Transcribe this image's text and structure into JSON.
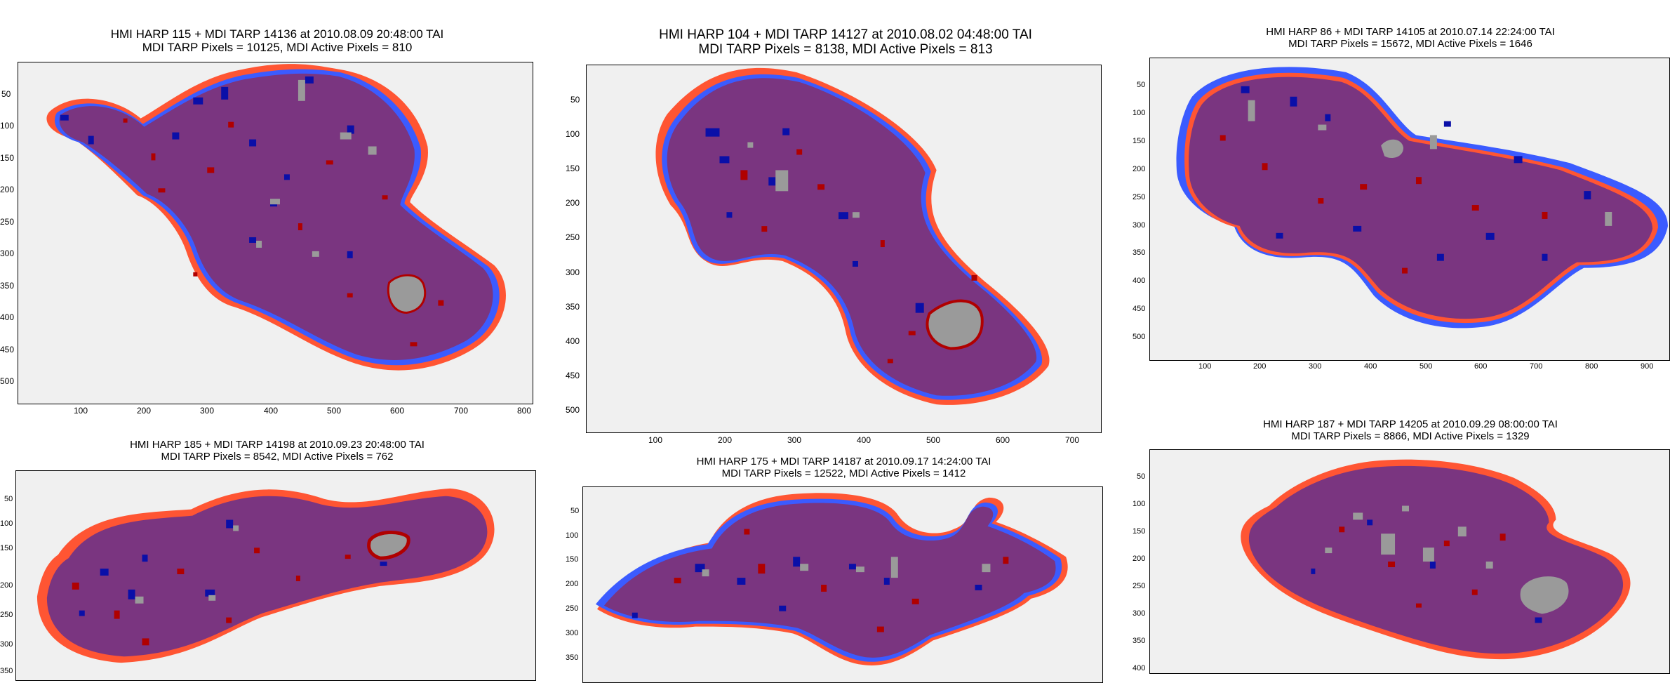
{
  "colors": {
    "background": "#f0f0f0",
    "region": "#7a3580",
    "mdi_only": "#ff5533",
    "hmi_only": "#3b5bff",
    "active_hmi": "#0a0fa8",
    "active_mdi": "#b00000",
    "active_both": "#9a9a9a"
  },
  "panels": [
    {
      "title1": "HMI HARP 115 + MDI TARP 14136 at 2010.08.09 20:48:00 TAI",
      "title2": "MDI TARP Pixels = 10125, MDI Active Pixels = 810",
      "xticks": [
        "100",
        "200",
        "300",
        "400",
        "500",
        "600",
        "700",
        "800"
      ],
      "yticks": [
        "50",
        "100",
        "150",
        "200",
        "250",
        "300",
        "350",
        "400",
        "450",
        "500"
      ],
      "xlim": [
        0,
        820
      ],
      "ylim": [
        0,
        530
      ]
    },
    {
      "title1": "HMI HARP 104 + MDI TARP 14127 at 2010.08.02 04:48:00 TAI",
      "title2": "MDI TARP Pixels = 8138, MDI Active Pixels = 813",
      "xticks": [
        "100",
        "200",
        "300",
        "400",
        "500",
        "600",
        "700"
      ],
      "yticks": [
        "50",
        "100",
        "150",
        "200",
        "250",
        "300",
        "350",
        "400",
        "450",
        "500"
      ],
      "xlim": [
        0,
        740
      ],
      "ylim": [
        0,
        530
      ]
    },
    {
      "title1": "HMI HARP 86 + MDI TARP 14105 at 2010.07.14 22:24:00 TAI",
      "title2": "MDI TARP Pixels = 15672, MDI Active Pixels = 1646",
      "xticks": [
        "100",
        "200",
        "300",
        "400",
        "500",
        "600",
        "700",
        "800",
        "900"
      ],
      "yticks": [
        "50",
        "100",
        "150",
        "200",
        "250",
        "300",
        "350",
        "400",
        "450",
        "500"
      ],
      "xlim": [
        0,
        940
      ],
      "ylim": [
        0,
        545
      ]
    },
    {
      "title1": "HMI HARP 185 + MDI TARP 14198 at 2010.09.23 20:48:00 TAI",
      "title2": "MDI TARP Pixels = 8542, MDI Active Pixels = 762",
      "xticks": [],
      "yticks": [
        "50",
        "100",
        "150",
        "200",
        "250",
        "300",
        "350"
      ],
      "xlim": [
        0,
        820
      ],
      "ylim": [
        0,
        375
      ]
    },
    {
      "title1": "HMI HARP 175 + MDI TARP 14187 at 2010.09.17 14:24:00 TAI",
      "title2": "MDI TARP Pixels = 12522, MDI Active Pixels = 1412",
      "xticks": [],
      "yticks": [
        "50",
        "100",
        "150",
        "200",
        "250",
        "300",
        "350"
      ],
      "xlim": [
        0,
        820
      ],
      "ylim": [
        0,
        375
      ]
    },
    {
      "title1": "HMI HARP 187 + MDI TARP 14205 at 2010.09.29 08:00:00 TAI",
      "title2": "MDI TARP Pixels = 8866, MDI Active Pixels = 1329",
      "xticks": [],
      "yticks": [
        "50",
        "100",
        "150",
        "200",
        "250",
        "300",
        "350",
        "400"
      ],
      "xlim": [
        0,
        900
      ],
      "ylim": [
        0,
        410
      ]
    }
  ]
}
